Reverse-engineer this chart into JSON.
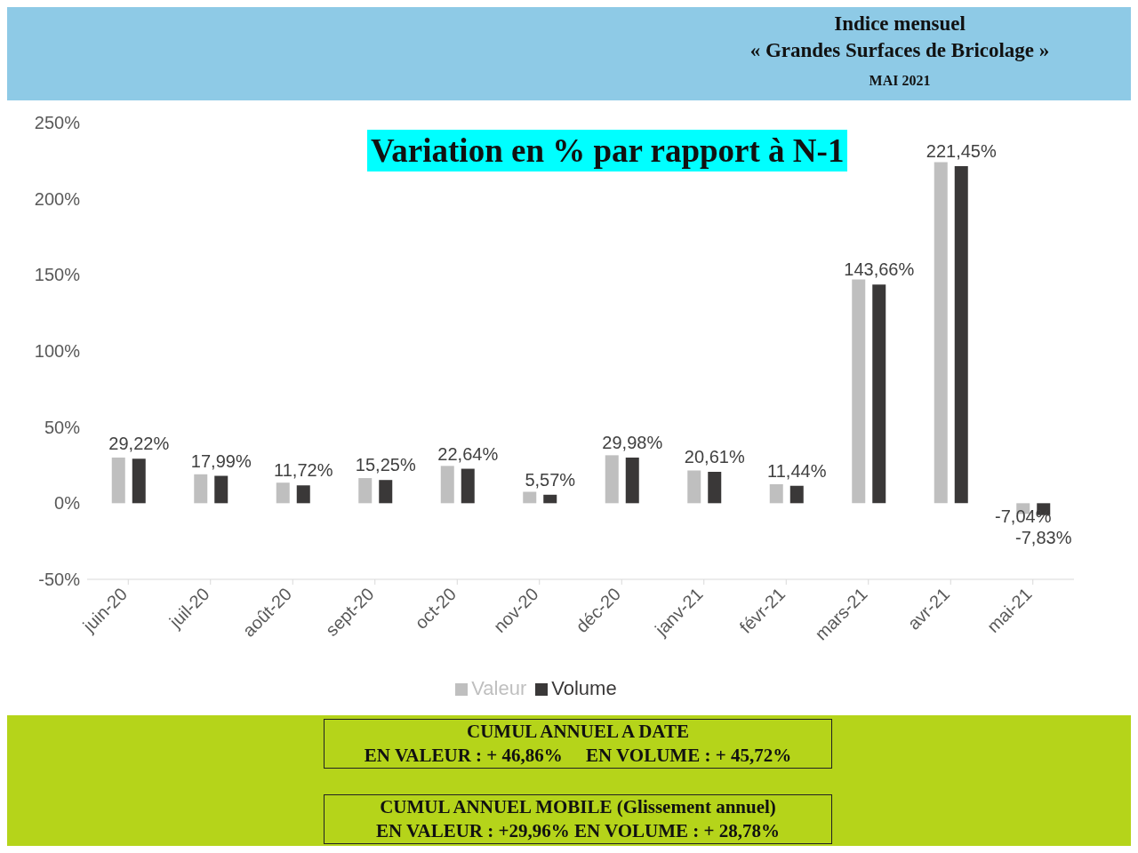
{
  "chart_data": {
    "type": "bar",
    "title": "Variation en % par rapport à N-1",
    "annotations": [
      "Indice mensuel",
      "« Grandes Surfaces de Bricolage »",
      "MAI 2021",
      "CUMUL ANNUEL A DATE",
      "EN VALEUR : + 46,86%     EN VOLUME : + 45,72%",
      "CUMUL ANNUEL MOBILE (Glissement annuel)",
      "EN VALEUR : +29,96% EN VOLUME : + 28,78%"
    ],
    "categories": [
      "juin-20",
      "juil-20",
      "août-20",
      "sept-20",
      "oct-20",
      "nov-20",
      "déc-20",
      "janv-21",
      "févr-21",
      "mars-21",
      "avr-21",
      "mai-21"
    ],
    "series": [
      {
        "name": "Valeur",
        "color": "#bfbfbf",
        "values": [
          30,
          19,
          13.5,
          16.5,
          24.5,
          7.5,
          31.5,
          21.5,
          12.5,
          147,
          224,
          -7.04
        ],
        "value_labels": [
          null,
          null,
          null,
          null,
          null,
          null,
          null,
          null,
          null,
          null,
          null,
          "-7,04%"
        ]
      },
      {
        "name": "Volume",
        "color": "#3a3838",
        "values": [
          29.22,
          17.99,
          11.72,
          15.25,
          22.64,
          5.57,
          29.98,
          20.61,
          11.44,
          143.66,
          221.45,
          -7.83
        ],
        "value_labels": [
          "29,22%",
          "17,99%",
          "11,72%",
          "15,25%",
          "22,64%",
          "5,57%",
          "29,98%",
          "20,61%",
          "11,44%",
          "143,66%",
          "221,45%",
          "-7,83%"
        ]
      }
    ],
    "ylim": [
      -50,
      250
    ],
    "yticks": [
      {
        "value": -50,
        "label": "-50%"
      },
      {
        "value": 0,
        "label": "0%"
      },
      {
        "value": 50,
        "label": "50%"
      },
      {
        "value": 100,
        "label": "100%"
      },
      {
        "value": 150,
        "label": "150%"
      },
      {
        "value": 200,
        "label": "200%"
      },
      {
        "value": 250,
        "label": "250%"
      }
    ],
    "grid": false,
    "legend": "bottom"
  }
}
